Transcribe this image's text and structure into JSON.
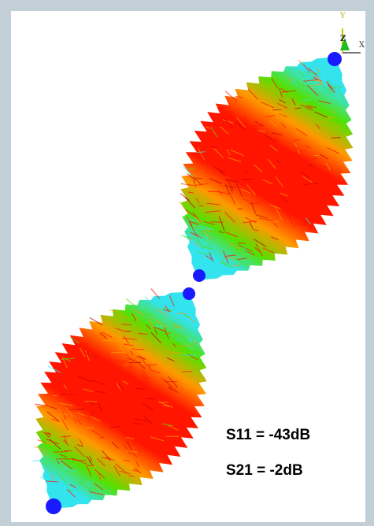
{
  "axes": {
    "y_label": "Y",
    "z_label": "Z",
    "x_label": "X"
  },
  "results": {
    "s11": "S11 = -43dB",
    "s21": "S21 = -2dB"
  },
  "colors": {
    "background": "#c3cfd6",
    "panel": "#ffffff",
    "field_high": "#ff1500",
    "field_mid": "#ff9900",
    "field_green": "#55e000",
    "field_low": "#33e3ee",
    "ports": "#1a1aff"
  }
}
